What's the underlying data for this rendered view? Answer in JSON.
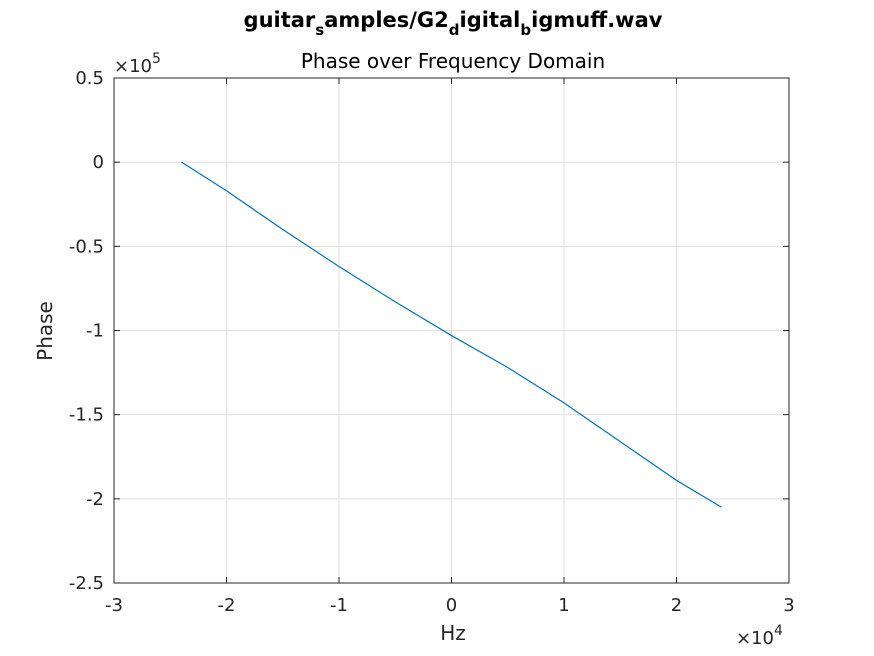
{
  "title_parts": {
    "p1": "guitar",
    "s1": "s",
    "p2": "amples/G2",
    "s2": "d",
    "p3": "igital",
    "s3": "b",
    "p4": "igmuff.wav"
  },
  "subtitle": "Phase over Frequency Domain",
  "y_exponent": {
    "base": "×10",
    "power": "5"
  },
  "x_exponent": {
    "base": "×10",
    "power": "4"
  },
  "chart_data": {
    "type": "line",
    "title": "guitar_samples/G2_digital_bigmuff.wav",
    "subtitle": "Phase over Frequency Domain",
    "xlabel": "Hz",
    "ylabel": "Phase",
    "x_scale": 10000,
    "y_scale": 100000,
    "xlim": [
      -3,
      3
    ],
    "ylim": [
      -2.5,
      0.5
    ],
    "xticks": [
      -3,
      -2,
      -1,
      0,
      1,
      2,
      3
    ],
    "yticks": [
      -2.5,
      -2,
      -1.5,
      -1,
      -0.5,
      0,
      0.5
    ],
    "xtick_labels": [
      "-3",
      "-2",
      "-1",
      "0",
      "1",
      "2",
      "3"
    ],
    "ytick_labels": [
      "-2.5",
      "-2",
      "-1.5",
      "-1",
      "-0.5",
      "0",
      "0.5"
    ],
    "grid": true,
    "color": "#0072BD",
    "series": [
      {
        "x": [
          -2.4,
          -2.0,
          -1.5,
          -1.0,
          -0.5,
          0.0,
          0.5,
          1.0,
          1.5,
          2.0,
          2.4
        ],
        "y": [
          0.0,
          -0.17,
          -0.4,
          -0.62,
          -0.83,
          -1.03,
          -1.22,
          -1.43,
          -1.66,
          -1.89,
          -2.05
        ]
      }
    ]
  }
}
